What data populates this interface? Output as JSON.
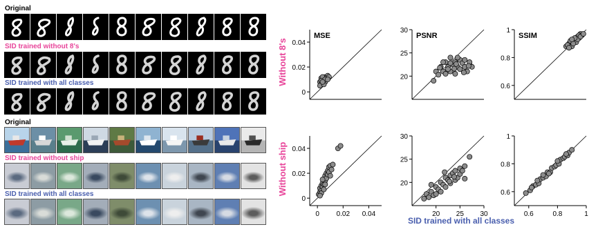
{
  "left": {
    "mnist": {
      "original_label": "Original",
      "without_label": "SID trained without 8's",
      "all_label": "SID trained with all classes"
    },
    "cifar": {
      "original_label": "Original",
      "without_label": "SID trained without ship",
      "all_label": "SID trained with all classes"
    }
  },
  "colors": {
    "pink": "#e8459a",
    "blue": "#4a5fae",
    "point": "#8c8c8c"
  },
  "figure": {
    "xlabel": "SID trained with all classes",
    "row_labels": [
      "Without 8's",
      "Without ship"
    ]
  },
  "chart_data": [
    {
      "type": "scatter",
      "title": "MSE",
      "row": "Without 8's",
      "xlim": [
        -0.006,
        0.05
      ],
      "ylim": [
        -0.006,
        0.05
      ],
      "yticks": [
        0,
        0.02,
        0.04
      ],
      "yticklabels": [
        "0",
        "0.02",
        "0.04"
      ],
      "xticks": [],
      "xticklabels": [],
      "points": [
        [
          0.002,
          0.008
        ],
        [
          0.003,
          0.006
        ],
        [
          0.004,
          0.01
        ],
        [
          0.003,
          0.011
        ],
        [
          0.005,
          0.009
        ],
        [
          0.004,
          0.007
        ],
        [
          0.006,
          0.012
        ],
        [
          0.007,
          0.01
        ],
        [
          0.005,
          0.011
        ],
        [
          0.006,
          0.008
        ],
        [
          0.008,
          0.013
        ],
        [
          0.004,
          0.012
        ],
        [
          0.003,
          0.009
        ],
        [
          0.007,
          0.011
        ],
        [
          0.002,
          0.005
        ],
        [
          0.005,
          0.006
        ],
        [
          0.006,
          0.01
        ],
        [
          0.009,
          0.012
        ],
        [
          0.004,
          0.008
        ],
        [
          0.008,
          0.01
        ]
      ]
    },
    {
      "type": "scatter",
      "title": "PSNR",
      "row": "Without 8's",
      "xlim": [
        15,
        30
      ],
      "ylim": [
        15,
        30
      ],
      "yticks": [
        20,
        25,
        30
      ],
      "yticklabels": [
        "20",
        "25",
        "30"
      ],
      "xticks": [],
      "xticklabels": [],
      "points": [
        [
          19.5,
          19
        ],
        [
          20,
          21
        ],
        [
          20.5,
          20.3
        ],
        [
          21,
          22
        ],
        [
          21.5,
          21
        ],
        [
          22,
          23
        ],
        [
          22,
          20.5
        ],
        [
          22.5,
          22
        ],
        [
          23,
          24
        ],
        [
          23,
          21
        ],
        [
          23.5,
          22.5
        ],
        [
          24,
          23
        ],
        [
          24,
          20.5
        ],
        [
          24.5,
          22
        ],
        [
          25,
          23.5
        ],
        [
          25,
          21.5
        ],
        [
          25.5,
          22.8
        ],
        [
          26,
          22
        ],
        [
          26,
          23.5
        ],
        [
          26.5,
          21
        ],
        [
          27,
          22.5
        ],
        [
          27,
          23
        ],
        [
          27.5,
          22
        ],
        [
          21.5,
          23
        ],
        [
          23,
          22.8
        ],
        [
          24.5,
          24
        ],
        [
          22.5,
          21.5
        ],
        [
          20.8,
          21.8
        ],
        [
          25.8,
          20.8
        ],
        [
          23.8,
          21.6
        ],
        [
          26.8,
          22.2
        ],
        [
          24.2,
          22.6
        ]
      ]
    },
    {
      "type": "scatter",
      "title": "SSIM",
      "row": "Without 8's",
      "xlim": [
        0.5,
        1.0
      ],
      "ylim": [
        0.5,
        1.0
      ],
      "yticks": [
        0.6,
        0.8,
        1.0
      ],
      "yticklabels": [
        "0.6",
        "0.8",
        "1"
      ],
      "xticks": [],
      "xticklabels": [],
      "points": [
        [
          0.86,
          0.88
        ],
        [
          0.88,
          0.9
        ],
        [
          0.9,
          0.91
        ],
        [
          0.92,
          0.93
        ],
        [
          0.94,
          0.95
        ],
        [
          0.95,
          0.94
        ],
        [
          0.96,
          0.97
        ],
        [
          0.87,
          0.89
        ],
        [
          0.9,
          0.88
        ],
        [
          0.93,
          0.91
        ],
        [
          0.95,
          0.96
        ],
        [
          0.97,
          0.96
        ],
        [
          0.89,
          0.92
        ],
        [
          0.91,
          0.9
        ],
        [
          0.94,
          0.93
        ],
        [
          0.88,
          0.87
        ],
        [
          0.96,
          0.95
        ],
        [
          0.92,
          0.94
        ],
        [
          0.98,
          0.97
        ],
        [
          0.9,
          0.93
        ]
      ]
    },
    {
      "type": "scatter",
      "title": "",
      "row": "Without ship",
      "xlim": [
        -0.006,
        0.05
      ],
      "ylim": [
        -0.006,
        0.05
      ],
      "yticks": [
        0,
        0.02,
        0.04
      ],
      "yticklabels": [
        "0",
        "0.02",
        "0.04"
      ],
      "xticks": [
        0,
        0.02,
        0.04
      ],
      "xticklabels": [
        "0",
        "0.02",
        "0.04"
      ],
      "points": [
        [
          0.001,
          0.003
        ],
        [
          0.002,
          0.005
        ],
        [
          0.002,
          0.008
        ],
        [
          0.003,
          0.006
        ],
        [
          0.003,
          0.01
        ],
        [
          0.004,
          0.009
        ],
        [
          0.004,
          0.012
        ],
        [
          0.005,
          0.011
        ],
        [
          0.005,
          0.015
        ],
        [
          0.006,
          0.014
        ],
        [
          0.006,
          0.018
        ],
        [
          0.007,
          0.016
        ],
        [
          0.007,
          0.02
        ],
        [
          0.008,
          0.019
        ],
        [
          0.008,
          0.022
        ],
        [
          0.009,
          0.025
        ],
        [
          0.009,
          0.021
        ],
        [
          0.01,
          0.026
        ],
        [
          0.011,
          0.023
        ],
        [
          0.012,
          0.027
        ],
        [
          0.004,
          0.015
        ],
        [
          0.006,
          0.011
        ],
        [
          0.003,
          0.004
        ],
        [
          0.016,
          0.04
        ],
        [
          0.018,
          0.042
        ],
        [
          0.01,
          0.018
        ],
        [
          0.002,
          0.002
        ],
        [
          0.005,
          0.007
        ]
      ]
    },
    {
      "type": "scatter",
      "title": "",
      "row": "Without ship",
      "xlim": [
        15,
        30
      ],
      "ylim": [
        15,
        30
      ],
      "yticks": [
        20,
        25,
        30
      ],
      "yticklabels": [
        "20",
        "25",
        "30"
      ],
      "xticks": [
        20,
        25,
        30
      ],
      "xticklabels": [
        "20",
        "25",
        "30"
      ],
      "points": [
        [
          17.5,
          16.5
        ],
        [
          18,
          17.5
        ],
        [
          18.5,
          16.8
        ],
        [
          19,
          18
        ],
        [
          19.5,
          17.2
        ],
        [
          20,
          19
        ],
        [
          20.5,
          18.5
        ],
        [
          21,
          20
        ],
        [
          21,
          18
        ],
        [
          21.5,
          19.5
        ],
        [
          22,
          21
        ],
        [
          22,
          19
        ],
        [
          22.5,
          20.5
        ],
        [
          23,
          21.5
        ],
        [
          23,
          19.8
        ],
        [
          23.5,
          22
        ],
        [
          24,
          20.5
        ],
        [
          24,
          22.5
        ],
        [
          24.5,
          21
        ],
        [
          25,
          23
        ],
        [
          25,
          21.8
        ],
        [
          25.5,
          22.5
        ],
        [
          26,
          23.5
        ],
        [
          26,
          20.8
        ],
        [
          27,
          25.5
        ],
        [
          20,
          17.5
        ],
        [
          19,
          19.5
        ],
        [
          21.8,
          22.2
        ],
        [
          23.8,
          21.2
        ],
        [
          22.8,
          20.2
        ]
      ]
    },
    {
      "type": "scatter",
      "title": "",
      "row": "Without ship",
      "xlim": [
        0.5,
        1.0
      ],
      "ylim": [
        0.5,
        1.0
      ],
      "yticks": [
        0.6,
        0.8,
        1.0
      ],
      "yticklabels": [
        "0.6",
        "0.8",
        "1"
      ],
      "xticks": [
        0.6,
        0.8,
        1.0
      ],
      "xticklabels": [
        "0.6",
        "0.8",
        "1"
      ],
      "points": [
        [
          0.58,
          0.59
        ],
        [
          0.61,
          0.61
        ],
        [
          0.63,
          0.64
        ],
        [
          0.65,
          0.65
        ],
        [
          0.67,
          0.66
        ],
        [
          0.68,
          0.69
        ],
        [
          0.7,
          0.7
        ],
        [
          0.72,
          0.71
        ],
        [
          0.73,
          0.74
        ],
        [
          0.75,
          0.74
        ],
        [
          0.76,
          0.77
        ],
        [
          0.78,
          0.78
        ],
        [
          0.79,
          0.79
        ],
        [
          0.81,
          0.8
        ],
        [
          0.82,
          0.83
        ],
        [
          0.84,
          0.84
        ],
        [
          0.85,
          0.85
        ],
        [
          0.87,
          0.86
        ],
        [
          0.88,
          0.88
        ],
        [
          0.9,
          0.9
        ],
        [
          0.66,
          0.68
        ],
        [
          0.74,
          0.73
        ],
        [
          0.8,
          0.82
        ],
        [
          0.86,
          0.87
        ],
        [
          0.62,
          0.63
        ],
        [
          0.7,
          0.72
        ]
      ]
    }
  ]
}
